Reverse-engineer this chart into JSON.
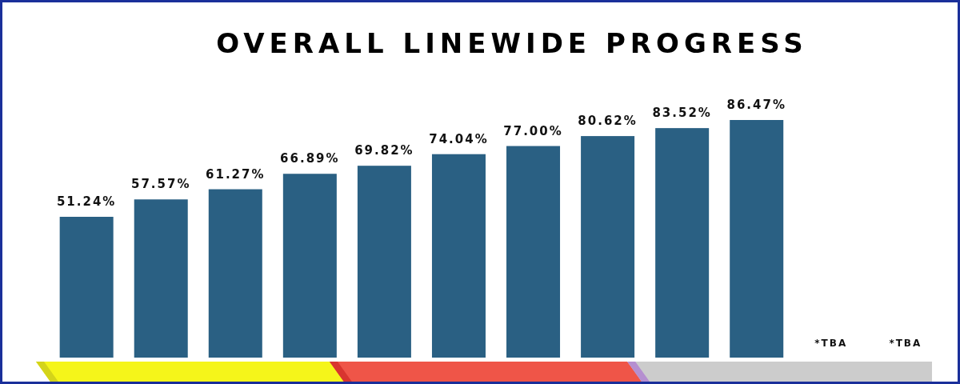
{
  "chart_data": {
    "type": "bar",
    "title": "OVERALL LINEWIDE PROGRESS",
    "categories": [
      null,
      null,
      null,
      null,
      null,
      null,
      null,
      null,
      null,
      null
    ],
    "values": [
      51.24,
      57.57,
      61.27,
      66.89,
      69.82,
      74.04,
      77.0,
      80.62,
      83.52,
      86.47
    ],
    "value_labels": [
      "51.24%",
      "57.57%",
      "61.27%",
      "66.89%",
      "69.82%",
      "74.04%",
      "77.00%",
      "80.62%",
      "83.52%",
      "86.47%"
    ],
    "annotations": [
      "*TBA",
      "*TBA"
    ],
    "color": "#2a6083",
    "grid": false
  }
}
